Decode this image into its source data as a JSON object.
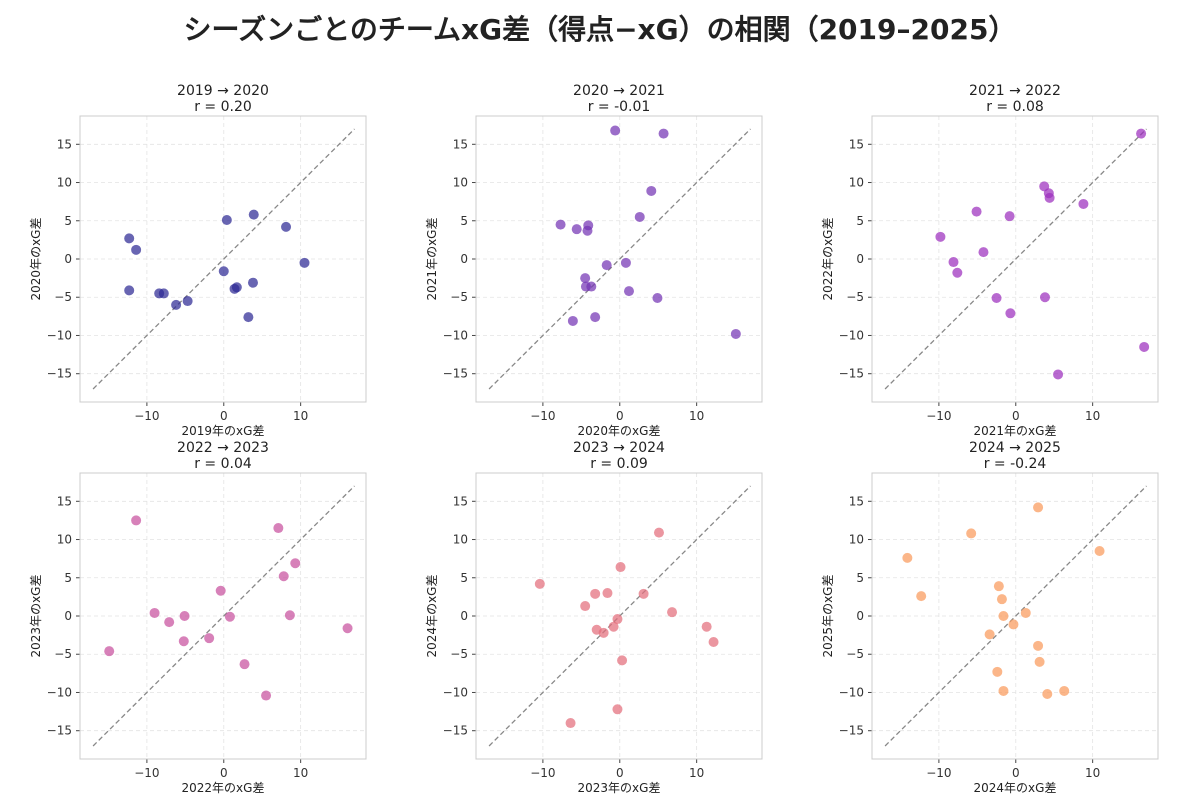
{
  "title": "シーズンごとのチームxG差（得点−xG）の相関（2019–2025）",
  "chart_data": [
    {
      "type": "scatter",
      "title": "2019 → 2020",
      "r_label": "r = 0.20",
      "xlabel": "2019年のxG差",
      "ylabel": "2020年のxG差",
      "color": "#2e2a94",
      "points": [
        [
          -12.3,
          2.7
        ],
        [
          -11.4,
          1.2
        ],
        [
          -12.3,
          -4.1
        ],
        [
          -8.4,
          -4.5
        ],
        [
          -7.8,
          -4.5
        ],
        [
          -6.2,
          -6.0
        ],
        [
          -4.7,
          -5.5
        ],
        [
          0.4,
          5.1
        ],
        [
          0.0,
          -1.6
        ],
        [
          3.9,
          5.8
        ],
        [
          8.1,
          4.2
        ],
        [
          10.5,
          -0.5
        ],
        [
          1.4,
          -3.9
        ],
        [
          1.7,
          -3.7
        ],
        [
          3.8,
          -3.1
        ],
        [
          3.2,
          -7.6
        ]
      ]
    },
    {
      "type": "scatter",
      "title": "2020 → 2021",
      "r_label": "r = -0.01",
      "xlabel": "2020年のxG差",
      "ylabel": "2021年のxG差",
      "color": "#7434b4",
      "points": [
        [
          -0.6,
          16.8
        ],
        [
          5.7,
          16.4
        ],
        [
          4.1,
          8.9
        ],
        [
          2.6,
          5.5
        ],
        [
          -7.7,
          4.5
        ],
        [
          -5.6,
          3.9
        ],
        [
          -4.1,
          4.4
        ],
        [
          -4.2,
          3.7
        ],
        [
          -1.7,
          -0.8
        ],
        [
          0.8,
          -0.5
        ],
        [
          -4.5,
          -2.5
        ],
        [
          -4.4,
          -3.6
        ],
        [
          -3.7,
          -3.6
        ],
        [
          1.2,
          -4.2
        ],
        [
          4.9,
          -5.1
        ],
        [
          -6.1,
          -8.1
        ],
        [
          -3.2,
          -7.6
        ],
        [
          15.1,
          -9.8
        ]
      ]
    },
    {
      "type": "scatter",
      "title": "2021 → 2022",
      "r_label": "r = 0.08",
      "xlabel": "2021年のxG差",
      "ylabel": "2022年のxG差",
      "color": "#9d2fbe",
      "points": [
        [
          16.3,
          16.4
        ],
        [
          -9.8,
          2.9
        ],
        [
          -5.1,
          6.2
        ],
        [
          -0.8,
          5.6
        ],
        [
          3.7,
          9.5
        ],
        [
          4.3,
          8.6
        ],
        [
          4.4,
          8.0
        ],
        [
          8.8,
          7.2
        ],
        [
          -8.1,
          -0.4
        ],
        [
          -7.6,
          -1.8
        ],
        [
          -4.2,
          0.9
        ],
        [
          -2.5,
          -5.1
        ],
        [
          3.8,
          -5.0
        ],
        [
          -0.7,
          -7.1
        ],
        [
          16.7,
          -11.5
        ],
        [
          5.5,
          -15.1
        ]
      ]
    },
    {
      "type": "scatter",
      "title": "2022 → 2023",
      "r_label": "r = 0.04",
      "xlabel": "2022年のxG差",
      "ylabel": "2023年のxG差",
      "color": "#c8509e",
      "points": [
        [
          -11.4,
          12.5
        ],
        [
          7.1,
          11.5
        ],
        [
          9.3,
          6.9
        ],
        [
          7.8,
          5.2
        ],
        [
          -0.4,
          3.3
        ],
        [
          -9.0,
          0.4
        ],
        [
          -7.1,
          -0.8
        ],
        [
          -5.1,
          0.0
        ],
        [
          0.8,
          -0.1
        ],
        [
          8.6,
          0.1
        ],
        [
          16.1,
          -1.6
        ],
        [
          -14.9,
          -4.6
        ],
        [
          -5.2,
          -3.3
        ],
        [
          -1.9,
          -2.9
        ],
        [
          2.7,
          -6.3
        ],
        [
          5.5,
          -10.4
        ]
      ]
    },
    {
      "type": "scatter",
      "title": "2023 → 2024",
      "r_label": "r = 0.09",
      "xlabel": "2023年のxG差",
      "ylabel": "2024年のxG差",
      "color": "#e36e7c",
      "points": [
        [
          5.1,
          10.9
        ],
        [
          -10.4,
          4.2
        ],
        [
          0.1,
          6.4
        ],
        [
          -3.2,
          2.9
        ],
        [
          -1.6,
          3.0
        ],
        [
          3.1,
          2.9
        ],
        [
          -4.5,
          1.3
        ],
        [
          6.8,
          0.5
        ],
        [
          -0.3,
          -0.4
        ],
        [
          -0.8,
          -1.4
        ],
        [
          -3.0,
          -1.8
        ],
        [
          -2.1,
          -2.2
        ],
        [
          11.3,
          -1.4
        ],
        [
          12.2,
          -3.4
        ],
        [
          0.3,
          -5.8
        ],
        [
          -0.3,
          -12.2
        ],
        [
          -6.4,
          -14.0
        ]
      ]
    },
    {
      "type": "scatter",
      "title": "2024 → 2025",
      "r_label": "r = -0.24",
      "xlabel": "2024年のxG差",
      "ylabel": "2025年のxG差",
      "color": "#fa9a5c",
      "points": [
        [
          2.9,
          14.2
        ],
        [
          -5.8,
          10.8
        ],
        [
          10.9,
          8.5
        ],
        [
          -14.1,
          7.6
        ],
        [
          -12.3,
          2.6
        ],
        [
          -2.2,
          3.9
        ],
        [
          -1.8,
          2.2
        ],
        [
          -1.6,
          0.0
        ],
        [
          1.3,
          0.4
        ],
        [
          -0.3,
          -1.1
        ],
        [
          -3.4,
          -2.4
        ],
        [
          2.9,
          -3.9
        ],
        [
          3.1,
          -6.0
        ],
        [
          -2.4,
          -7.3
        ],
        [
          -1.6,
          -9.8
        ],
        [
          4.1,
          -10.2
        ],
        [
          6.3,
          -9.8
        ]
      ]
    }
  ],
  "axes": {
    "xlim": [
      -18.7,
      18.5
    ],
    "ylim": [
      -18.7,
      18.7
    ],
    "xticks": [
      -10,
      0,
      10
    ],
    "yticks": [
      -15,
      -10,
      -5,
      0,
      5,
      10,
      15
    ],
    "xtick_labels": [
      "−10",
      "0",
      "10"
    ],
    "ytick_labels": [
      "−15",
      "−10",
      "−5",
      "0",
      "5",
      "10",
      "15"
    ],
    "diagonal": [
      -17,
      17
    ],
    "grid": true
  }
}
